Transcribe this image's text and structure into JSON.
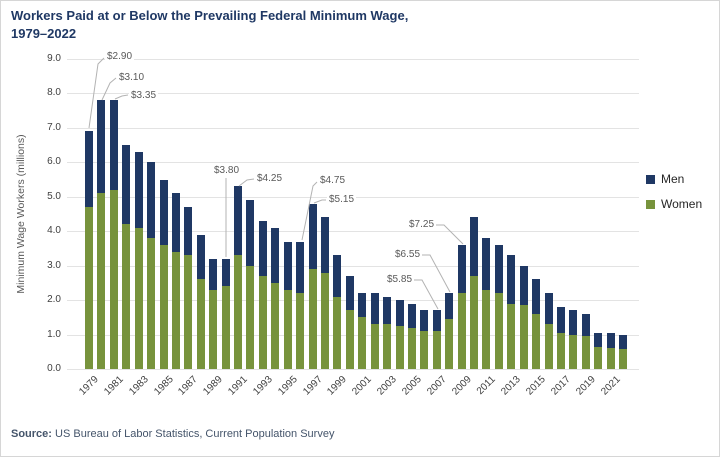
{
  "title": {
    "line1": "Workers Paid at or Below the Prevailing Federal Minimum Wage,",
    "line2": "1979–2022"
  },
  "source": {
    "label": "Source:",
    "text": " US Bureau of Labor Statistics, Current Population Survey"
  },
  "chart_data": {
    "type": "bar",
    "stacked": true,
    "title": "Workers Paid at or Below the Prevailing Federal Minimum Wage, 1979–2022",
    "ylabel": "Minimum Wage Workers (millions)",
    "ylim": [
      0,
      9
    ],
    "ytick_step": 1,
    "grid": true,
    "legend_position": "right",
    "categories": [
      1979,
      1980,
      1981,
      1982,
      1983,
      1984,
      1985,
      1986,
      1987,
      1988,
      1989,
      1990,
      1991,
      1992,
      1993,
      1994,
      1995,
      1996,
      1997,
      1998,
      1999,
      2000,
      2001,
      2002,
      2003,
      2004,
      2005,
      2006,
      2007,
      2008,
      2009,
      2010,
      2011,
      2012,
      2013,
      2014,
      2015,
      2016,
      2017,
      2018,
      2019,
      2020,
      2021,
      2022
    ],
    "xtick_labels": [
      "1979",
      "1981",
      "1983",
      "1985",
      "1987",
      "1989",
      "1991",
      "1993",
      "1995",
      "1997",
      "1999",
      "2001",
      "2003",
      "2005",
      "2007",
      "2009",
      "2011",
      "2013",
      "2015",
      "2017",
      "2019",
      "2021"
    ],
    "series": [
      {
        "name": "Men",
        "color": "#1f3864",
        "values": [
          2.2,
          2.7,
          2.6,
          2.3,
          2.2,
          2.2,
          1.9,
          1.7,
          1.4,
          1.3,
          0.9,
          0.8,
          2.0,
          1.9,
          1.6,
          1.6,
          1.4,
          1.5,
          1.9,
          1.6,
          1.2,
          1.0,
          0.7,
          0.9,
          0.8,
          0.75,
          0.7,
          0.6,
          0.6,
          0.75,
          1.4,
          1.7,
          1.5,
          1.4,
          1.4,
          1.15,
          1.0,
          0.9,
          0.75,
          0.7,
          0.65,
          0.42,
          0.43,
          0.42
        ]
      },
      {
        "name": "Women",
        "color": "#77933c",
        "values": [
          4.7,
          5.1,
          5.2,
          4.2,
          4.1,
          3.8,
          3.6,
          3.4,
          3.3,
          2.6,
          2.3,
          2.4,
          3.3,
          3.0,
          2.7,
          2.5,
          2.3,
          2.2,
          2.9,
          2.8,
          2.1,
          1.7,
          1.5,
          1.3,
          1.3,
          1.25,
          1.2,
          1.1,
          1.1,
          1.45,
          2.2,
          2.7,
          2.3,
          2.2,
          1.9,
          1.85,
          1.6,
          1.3,
          1.05,
          1.0,
          0.95,
          0.63,
          0.62,
          0.58
        ]
      }
    ],
    "annotations": [
      {
        "year": 1979,
        "text": "$2.90"
      },
      {
        "year": 1980,
        "text": "$3.10"
      },
      {
        "year": 1981,
        "text": "$3.35"
      },
      {
        "year": 1990,
        "text": "$3.80"
      },
      {
        "year": 1991,
        "text": "$4.25"
      },
      {
        "year": 1996,
        "text": "$4.75"
      },
      {
        "year": 1997,
        "text": "$5.15"
      },
      {
        "year": 2007,
        "text": "$5.85"
      },
      {
        "year": 2008,
        "text": "$6.55"
      },
      {
        "year": 2009,
        "text": "$7.25"
      }
    ]
  }
}
